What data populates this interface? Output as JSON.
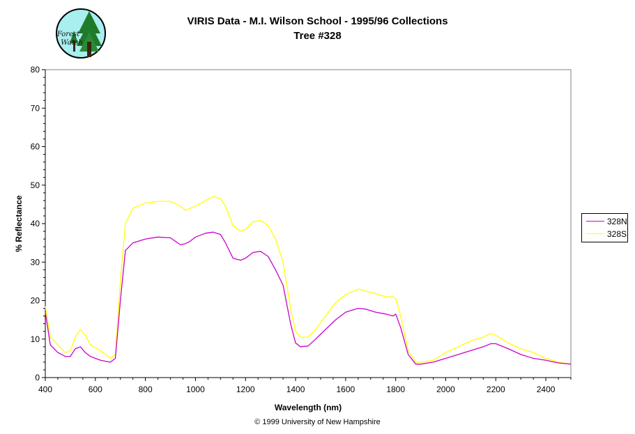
{
  "logo": {
    "text_line1": "Forest",
    "text_line2": "Watch"
  },
  "copyright": "© 1999 University of New Hampshire",
  "chart_data": {
    "type": "line",
    "title": "VIRIS Data - M.I. Wilson School - 1995/96 Collections",
    "subtitle": "Tree #328",
    "xlabel": "Wavelength (nm)",
    "ylabel": "% Reflectance",
    "xlim": [
      400,
      2500
    ],
    "ylim": [
      0,
      80
    ],
    "xticks": [
      400,
      600,
      800,
      1000,
      1200,
      1400,
      1600,
      1800,
      2000,
      2200,
      2400
    ],
    "yticks": [
      0,
      10,
      20,
      30,
      40,
      50,
      60,
      70,
      80
    ],
    "grid": false,
    "legend_position": "right",
    "series": [
      {
        "name": "328N",
        "color": "#cc00cc",
        "x": [
          400,
          420,
          450,
          480,
          500,
          520,
          540,
          560,
          580,
          620,
          660,
          680,
          700,
          720,
          750,
          800,
          850,
          900,
          940,
          960,
          980,
          1000,
          1040,
          1070,
          1100,
          1120,
          1150,
          1180,
          1200,
          1230,
          1260,
          1290,
          1320,
          1350,
          1380,
          1400,
          1420,
          1450,
          1480,
          1520,
          1560,
          1600,
          1650,
          1680,
          1720,
          1760,
          1790,
          1800,
          1820,
          1850,
          1880,
          1900,
          1950,
          2000,
          2050,
          2100,
          2150,
          2180,
          2200,
          2250,
          2300,
          2350,
          2400,
          2450,
          2500
        ],
        "values": [
          17,
          8.5,
          6.5,
          5.5,
          5.5,
          7.5,
          8,
          6.5,
          5.5,
          4.5,
          4,
          5,
          20,
          33,
          35,
          36,
          36.5,
          36.3,
          34.5,
          34.8,
          35.5,
          36.5,
          37.5,
          37.8,
          37.2,
          35,
          31,
          30.5,
          31,
          32.5,
          32.8,
          31.5,
          28,
          24,
          14,
          9,
          8,
          8.2,
          10,
          12.5,
          15,
          17,
          18,
          17.8,
          17,
          16.5,
          16,
          16.5,
          13,
          6,
          3.5,
          3.5,
          4,
          5,
          6,
          7,
          8,
          8.8,
          8.8,
          7.5,
          6,
          5,
          4.5,
          3.8,
          3.5
        ]
      },
      {
        "name": "328S",
        "color": "#ffff00",
        "x": [
          400,
          420,
          450,
          480,
          500,
          520,
          540,
          560,
          580,
          620,
          660,
          680,
          700,
          720,
          750,
          800,
          850,
          900,
          940,
          960,
          980,
          1000,
          1040,
          1070,
          1100,
          1120,
          1150,
          1180,
          1200,
          1230,
          1260,
          1290,
          1320,
          1350,
          1380,
          1400,
          1420,
          1450,
          1480,
          1520,
          1560,
          1600,
          1650,
          1680,
          1720,
          1760,
          1790,
          1800,
          1820,
          1850,
          1880,
          1900,
          1950,
          2000,
          2050,
          2100,
          2150,
          2180,
          2200,
          2250,
          2300,
          2350,
          2400,
          2450,
          2500
        ],
        "values": [
          18.5,
          10.5,
          8.5,
          6.5,
          7,
          10.5,
          12.5,
          11,
          8.5,
          7,
          5,
          6,
          25,
          40,
          44,
          45.3,
          45.8,
          45.8,
          44.5,
          43.5,
          44,
          44.5,
          46,
          47,
          46.5,
          44.5,
          39.5,
          38,
          38.5,
          40.5,
          40.8,
          39.5,
          36,
          30,
          18,
          12,
          10.5,
          10.5,
          12.5,
          16,
          19.5,
          21.5,
          23,
          22.5,
          21.8,
          21,
          21,
          20.5,
          16,
          7,
          4,
          4,
          4.5,
          6.5,
          8,
          9.5,
          10.5,
          11.5,
          11,
          9,
          7.5,
          6.5,
          5,
          4,
          3.5
        ]
      }
    ]
  }
}
